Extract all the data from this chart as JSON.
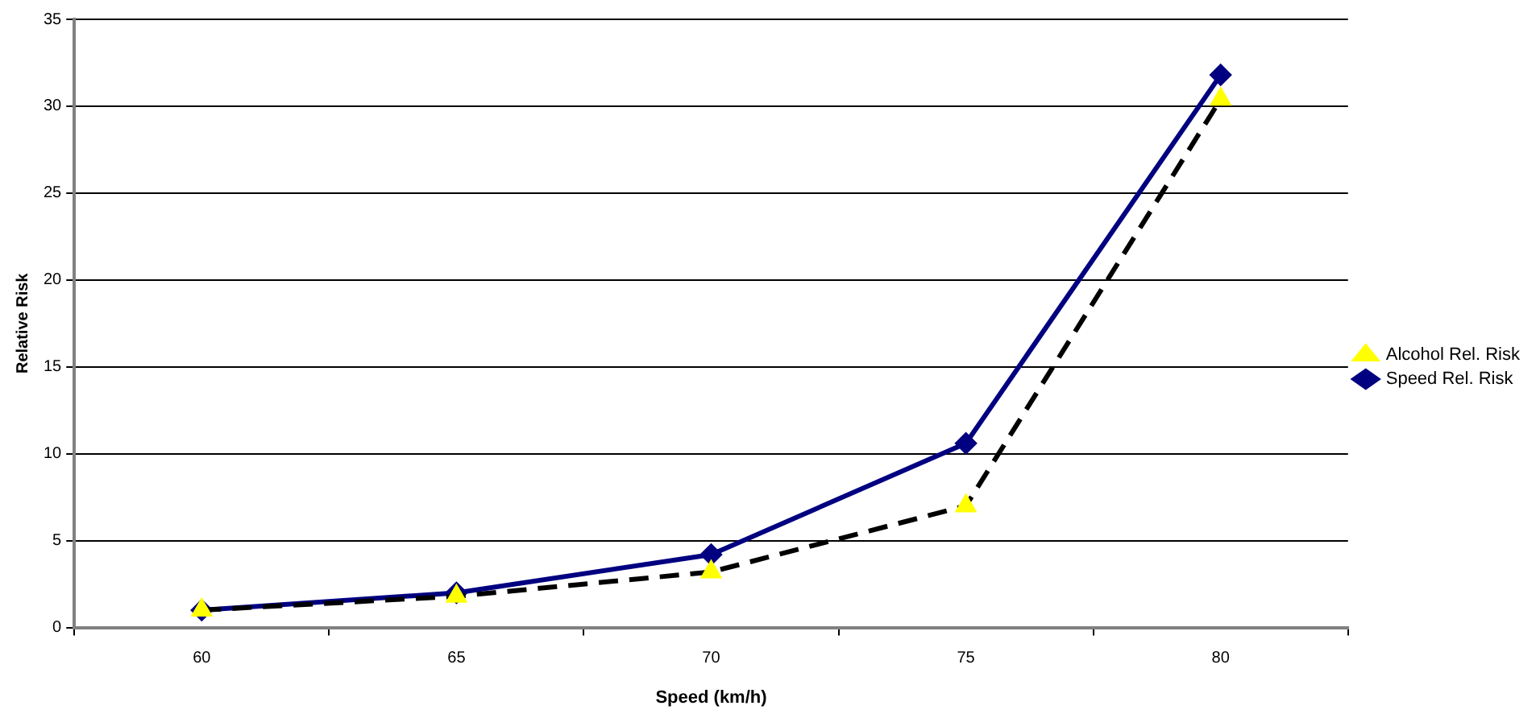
{
  "chart_data": {
    "type": "line",
    "xlabel": "Speed (km/h)",
    "ylabel": "Relative Risk",
    "categories": [
      "60",
      "65",
      "70",
      "75",
      "80"
    ],
    "series": [
      {
        "name": "Speed Rel. Risk",
        "color": "#000080",
        "marker": "diamond",
        "line_style": "solid",
        "values": [
          1.0,
          2.0,
          4.2,
          10.6,
          31.8
        ]
      },
      {
        "name": "Alcohol Rel. Risk",
        "color": "#000000",
        "colors": [
          "#ffff00",
          "#ffff00",
          "#ffff00",
          "#ffff00",
          "#ffff00"
        ],
        "marker": "triangle",
        "line_style": "dashed",
        "values": [
          1.0,
          1.8,
          3.2,
          7.0,
          30.4
        ]
      }
    ],
    "ylim": [
      0,
      35
    ],
    "yticks": [
      0,
      5,
      10,
      15,
      20,
      25,
      30,
      35
    ],
    "grid": "y",
    "legend": "right"
  }
}
